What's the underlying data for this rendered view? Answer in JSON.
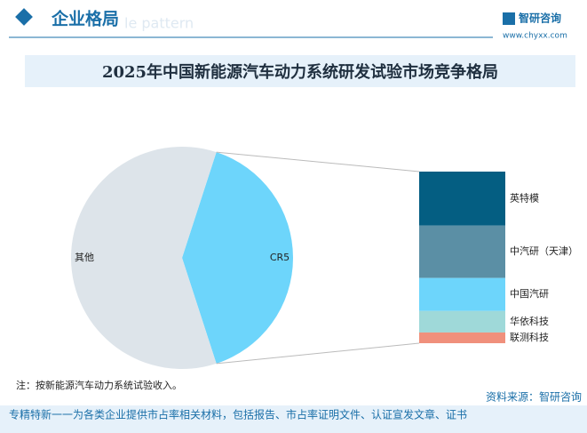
{
  "header": {
    "section": "企业格局",
    "watermark": "le pattern",
    "brand": "智研咨询",
    "url": "www.chyxx.com"
  },
  "chart_data": {
    "type": "pie-of-bar",
    "title": "2025年中国新能源汽车动力系统研发试验市场竞争格局",
    "pie": {
      "categories": [
        "CR5",
        "其他"
      ],
      "values": [
        40,
        60
      ],
      "colors": [
        "#6dd5fb",
        "#dde4ea"
      ]
    },
    "bar": {
      "categories": [
        "英特模",
        "中汽研（天津）",
        "中国汽研",
        "华依科技",
        "联测科技"
      ],
      "values": [
        12.6,
        12.2,
        7.7,
        5.0,
        2.5
      ],
      "colors": [
        "#045e82",
        "#5b8fa5",
        "#6dd5fb",
        "#9fd9d9",
        "#f0907c"
      ]
    }
  },
  "note": "注：按新能源汽车动力系统试验收入。",
  "source": "资料来源：智研咨询",
  "footer": "专精特新一一为各类企业提供市占率相关材料，包括报告、市占率证明文件、认证宣发文章、证书"
}
